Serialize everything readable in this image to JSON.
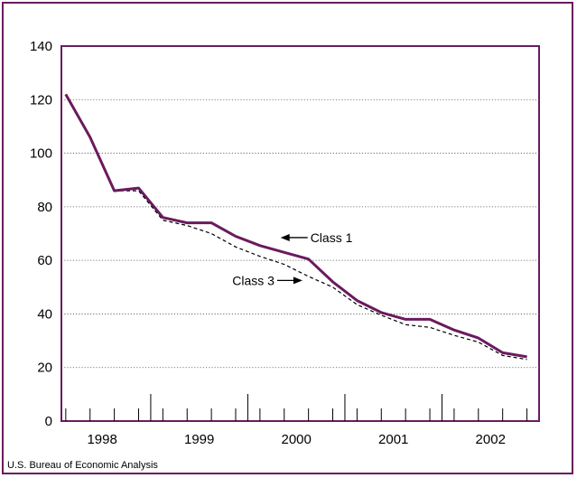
{
  "chart_data": {
    "type": "line",
    "title": "",
    "xlabel": "",
    "ylabel": "",
    "ylim": [
      0,
      140
    ],
    "yticks": [
      0,
      20,
      40,
      60,
      80,
      100,
      120,
      140
    ],
    "xlim": [
      1997.58,
      2002.5
    ],
    "year_labels": [
      {
        "label": "1998",
        "x": 1998.0
      },
      {
        "label": "1999",
        "x": 1999.0
      },
      {
        "label": "2000",
        "x": 2000.0
      },
      {
        "label": "2001",
        "x": 2001.0
      },
      {
        "label": "2002",
        "x": 2002.0
      }
    ],
    "year_boundaries": [
      1998.5,
      1999.5,
      2000.5,
      2001.5
    ],
    "quarter_ticks": [
      1997.625,
      1997.875,
      1998.125,
      1998.375,
      1998.625,
      1998.875,
      1999.125,
      1999.375,
      1999.625,
      1999.875,
      2000.125,
      2000.375,
      2000.625,
      2000.875,
      2001.125,
      2001.375,
      2001.625,
      2001.875,
      2002.125,
      2002.375
    ],
    "grid": "horizontal-dotted",
    "series": [
      {
        "name": "Class 1",
        "color": "#6a1b5e",
        "style": "solid",
        "x": [
          1997.625,
          1997.875,
          1998.125,
          1998.375,
          1998.625,
          1998.875,
          1999.125,
          1999.375,
          1999.625,
          1999.875,
          2000.125,
          2000.375,
          2000.625,
          2000.875,
          2001.125,
          2001.375,
          2001.625,
          2001.875,
          2002.125,
          2002.375
        ],
        "values": [
          122,
          106,
          86,
          87,
          76,
          74,
          74,
          69,
          65.5,
          63,
          60.5,
          52,
          45,
          40.5,
          38,
          38,
          34,
          31,
          25.5,
          24
        ]
      },
      {
        "name": "Class 3",
        "color": "#000000",
        "style": "dashed",
        "x": [
          1997.625,
          1997.875,
          1998.125,
          1998.375,
          1998.625,
          1998.875,
          1999.125,
          1999.375,
          1999.625,
          1999.875,
          2000.125,
          2000.375,
          2000.625,
          2000.875,
          2001.125,
          2001.375,
          2001.625,
          2001.875,
          2002.125,
          2002.375
        ],
        "values": [
          122,
          106,
          86,
          86,
          75,
          73,
          70,
          65,
          61.5,
          58.5,
          54,
          50,
          43.5,
          39.5,
          36,
          35,
          32,
          29.5,
          24.5,
          23
        ]
      }
    ],
    "annotations": [
      {
        "text": "Class 1",
        "series": 0,
        "arrow": "left",
        "x": 1999.8,
        "y": 68.5
      },
      {
        "text": "Class 3",
        "series": 1,
        "arrow": "right",
        "x": 2000.1,
        "y": 52.5
      }
    ]
  },
  "source": "U.S. Bureau of Economic Analysis"
}
